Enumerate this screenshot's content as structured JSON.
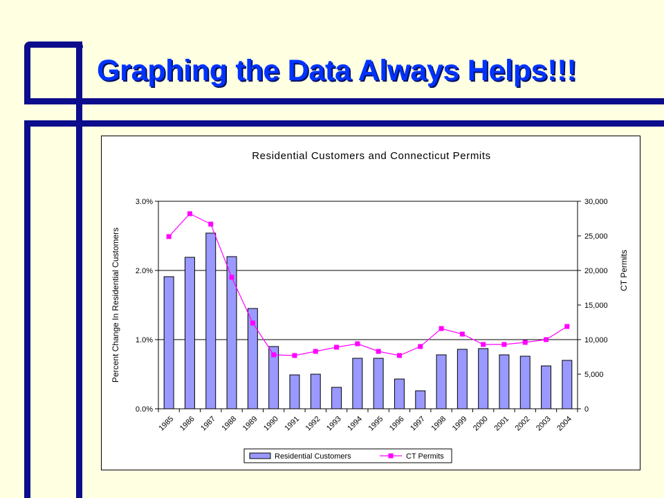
{
  "slide": {
    "title": "Graphing the Data Always Helps!!!"
  },
  "colors": {
    "background": "#FFFFE1",
    "frame": "#0C0C8C",
    "title": "#0033FF",
    "bar_fill": "#9999FF",
    "line": "#FF00FF"
  },
  "chart_data": {
    "type": "bar",
    "title": "Residential Customers and Connecticut Permits",
    "ylabel": "Percent Change In Residential Customers",
    "y2label": "CT Permits",
    "categories": [
      "1985",
      "1986",
      "1987",
      "1988",
      "1989",
      "1990",
      "1991",
      "1992",
      "1993",
      "1994",
      "1995",
      "1996",
      "1997",
      "1998",
      "1999",
      "2000",
      "2001",
      "2002",
      "2003",
      "2004"
    ],
    "ylim": [
      0,
      3.0
    ],
    "yticks": [
      "0.0%",
      "1.0%",
      "2.0%",
      "3.0%"
    ],
    "y2lim": [
      0,
      30000
    ],
    "y2ticks": [
      "0",
      "5,000",
      "10,000",
      "15,000",
      "20,000",
      "25,000",
      "30,000"
    ],
    "grid": true,
    "legend_position": "bottom",
    "series": [
      {
        "name": "Residential Customers",
        "type": "bar",
        "axis": "left",
        "values": [
          1.91,
          2.19,
          2.54,
          2.2,
          1.45,
          0.9,
          0.49,
          0.5,
          0.31,
          0.73,
          0.73,
          0.43,
          0.26,
          0.78,
          0.86,
          0.87,
          0.78,
          0.76,
          0.62,
          0.7
        ]
      },
      {
        "name": "CT Permits",
        "type": "line",
        "axis": "right",
        "values": [
          24900,
          28200,
          26700,
          19000,
          12400,
          7800,
          7700,
          8300,
          8900,
          9400,
          8300,
          7700,
          9000,
          11600,
          10800,
          9300,
          9300,
          9600,
          10000,
          11900
        ]
      }
    ]
  }
}
